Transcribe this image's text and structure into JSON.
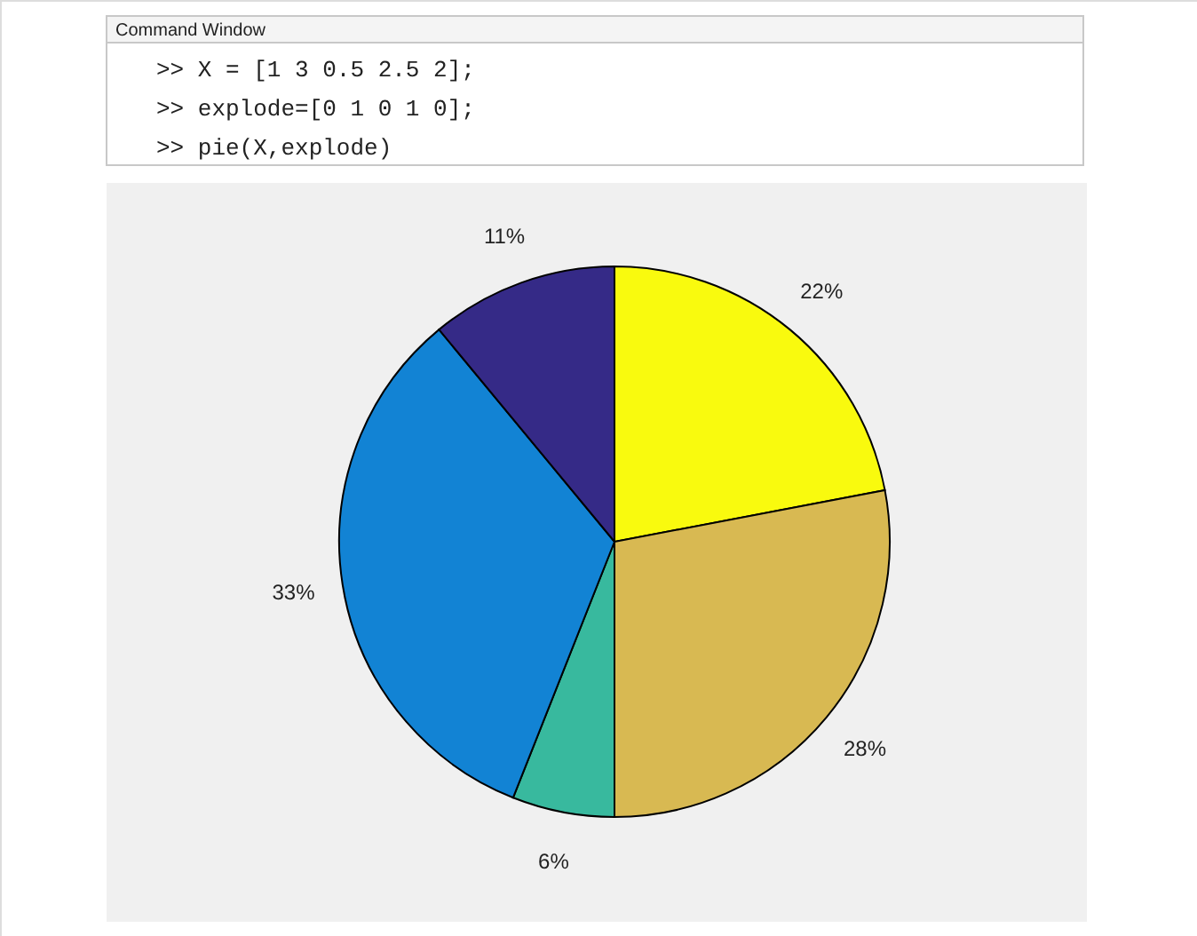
{
  "chart_data": {
    "type": "pie",
    "categories": [
      null,
      null,
      null,
      null,
      null
    ],
    "values": [
      22,
      28,
      6,
      33,
      11
    ],
    "colors": [
      "#f9fa0e",
      "#d8b952",
      "#38b99e",
      "#1283d4",
      "#352a87"
    ],
    "value_labels": [
      "22%",
      "28%",
      "6%",
      "33%",
      "11%"
    ],
    "annotations": [
      "Command Window",
      ">> X = [1 3 0.5 2.5 2];",
      ">> explode=[0 1 0 1 0];",
      ">> pie(X,explode)"
    ]
  }
}
